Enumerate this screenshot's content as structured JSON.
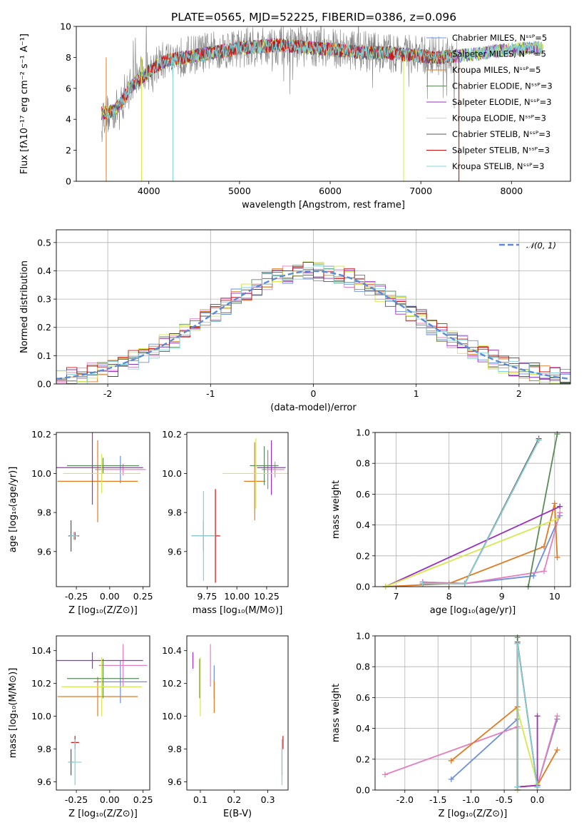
{
  "figure": {
    "title": "PLATE=0565, MJD=52225, FIBERID=0386, z=0.096"
  },
  "series_styles": [
    {
      "name": "Chabrier MILES, N_SSP=5",
      "color": "#6a8fdc"
    },
    {
      "name": "Salpeter MILES, N_SSP=5",
      "color": "#e47fc0"
    },
    {
      "name": "Kroupa MILES, N_SSP=5",
      "color": "#e07b22"
    },
    {
      "name": "Chabrier ELODIE, N_SSP=3",
      "color": "#5a8a5a"
    },
    {
      "name": "Salpeter ELODIE, N_SSP=3",
      "color": "#9b30c0"
    },
    {
      "name": "Kroupa ELODIE, N_SSP=3",
      "color": "#d6e84a"
    },
    {
      "name": "Chabrier STELIB, N_SSP=3",
      "color": "#555555"
    },
    {
      "name": "Salpeter STELIB, N_SSP=3",
      "color": "#cc1111"
    },
    {
      "name": "Kroupa STELIB, N_SSP=3",
      "color": "#7fd3d8"
    }
  ],
  "chart_data": [
    {
      "id": "spectrum",
      "type": "line",
      "xlabel": "wavelength [Angstrom, rest frame]",
      "ylabel": "Flux [f_λ 10^-17 erg cm^-2 s^-1 A^-1]",
      "xlim": [
        3200,
        8650
      ],
      "ylim": [
        0,
        10
      ],
      "xticks": [
        4000,
        5000,
        6000,
        7000,
        8000
      ],
      "yticks": [
        0,
        2,
        4,
        6,
        8,
        10
      ],
      "grid": false,
      "legend": {
        "position": "right",
        "entries": [
          "Chabrier MILES, N_SSP=5",
          "Salpeter MILES, N_SSP=5",
          "Kroupa MILES, N_SSP=5",
          "Chabrier ELODIE, N_SSP=3",
          "Salpeter ELODIE, N_SSP=3",
          "Kroupa ELODIE, N_SSP=3",
          "Chabrier STELIB, N_SSP=3",
          "Salpeter STELIB, N_SSP=3",
          "Kroupa STELIB, N_SSP=3"
        ]
      },
      "data_series": {
        "name": "data",
        "color": "#808080",
        "x": [
          3480,
          3600,
          3700,
          3800,
          3900,
          4000,
          4100,
          4200,
          4300,
          4400,
          4500,
          4600,
          4700,
          4800,
          4900,
          5000,
          5200,
          5400,
          5600,
          5800,
          6000,
          6200,
          6400,
          6600,
          6800,
          7000,
          7200,
          7400
        ],
        "y": [
          4.3,
          4.4,
          5.0,
          6.2,
          6.8,
          7.2,
          7.6,
          7.9,
          8.0,
          8.1,
          8.2,
          8.3,
          8.4,
          8.5,
          8.6,
          8.6,
          8.7,
          8.8,
          8.7,
          8.6,
          8.6,
          8.5,
          8.4,
          8.3,
          8.2,
          8.1,
          8.1,
          8.0
        ]
      },
      "model_continuum": {
        "x": [
          3480,
          3600,
          3700,
          3800,
          3900,
          4000,
          4100,
          4200,
          4300,
          4400,
          4500,
          4600,
          4700,
          4800,
          4900,
          5000,
          5200,
          5400,
          5600,
          5800,
          6000,
          6200,
          6400,
          6600,
          6800,
          7000,
          7200,
          7400,
          7600,
          7800,
          8000,
          8200,
          8350
        ],
        "y": [
          4.4,
          4.5,
          5.1,
          6.1,
          6.6,
          7.1,
          7.5,
          7.8,
          7.9,
          8.0,
          8.1,
          8.2,
          8.3,
          8.4,
          8.5,
          8.6,
          8.7,
          8.8,
          8.7,
          8.6,
          8.5,
          8.4,
          8.3,
          8.3,
          8.2,
          8.1,
          8.0,
          8.1,
          8.2,
          8.4,
          8.5,
          8.6,
          8.6
        ]
      }
    },
    {
      "id": "residuals",
      "type": "histogram",
      "xlabel": "(data-model)/error",
      "ylabel": "Normed distribution",
      "xlim": [
        -2.5,
        2.5
      ],
      "ylim": [
        0,
        0.545
      ],
      "xticks": [
        -2,
        -1,
        0,
        1,
        2
      ],
      "yticks": [
        0.0,
        0.1,
        0.2,
        0.3,
        0.4,
        0.5
      ],
      "grid": true,
      "legend": {
        "position": "top-right",
        "entries": [
          "N(0,1)"
        ]
      },
      "gaussian": {
        "name": "N(0,1)",
        "mean": 0,
        "sigma": 1,
        "color": "#5b8bd6"
      },
      "bin_width": 0.1
    },
    {
      "id": "age_vs_Z",
      "type": "scatter",
      "xlabel": "Z [log10(Z/Z_sun)]",
      "ylabel": "age [log10(age/yr)]",
      "xlim": [
        -0.4,
        0.3
      ],
      "ylim": [
        9.42,
        10.21
      ],
      "xticks": [
        -0.25,
        0.0,
        0.25
      ],
      "yticks": [
        9.6,
        9.8,
        10.0,
        10.2
      ],
      "points": [
        {
          "series": 0,
          "x": 0.08,
          "y": 10.02,
          "xerr": 0.19,
          "yerr": 0.07
        },
        {
          "series": 1,
          "x": 0.1,
          "y": 10.02,
          "xerr": 0.17,
          "yerr": 0.03
        },
        {
          "series": 2,
          "x": -0.09,
          "y": 9.96,
          "xerr": 0.3,
          "yerr": 0.21
        },
        {
          "series": 3,
          "x": -0.05,
          "y": 10.04,
          "xerr": 0.27,
          "yerr": 0.04
        },
        {
          "series": 4,
          "x": -0.13,
          "y": 10.03,
          "xerr": 0.38,
          "yerr": 0.19
        },
        {
          "series": 5,
          "x": -0.06,
          "y": 10.0,
          "xerr": 0.29,
          "yerr": 0.1
        },
        {
          "series": 6,
          "x": -0.29,
          "y": 9.68,
          "xerr": 0.02,
          "yerr": 0.08
        },
        {
          "series": 7,
          "x": -0.26,
          "y": 9.68,
          "xerr": 0.03,
          "yerr": 0.02
        },
        {
          "series": 8,
          "x": -0.27,
          "y": 9.68,
          "xerr": 0.03,
          "yerr": 0.02
        }
      ]
    },
    {
      "id": "age_vs_mass",
      "type": "scatter",
      "xlabel": "mass [log10(M/M_sun)]",
      "ylabel": "",
      "xlim": [
        9.58,
        10.43
      ],
      "ylim": [
        9.42,
        10.21
      ],
      "xticks": [
        9.75,
        10.0,
        10.25
      ],
      "yticks": [
        9.6,
        9.8,
        10.0,
        10.2
      ],
      "points": [
        {
          "series": 0,
          "x": 10.26,
          "y": 10.02,
          "xerr": 0.05,
          "yerr": 0.1
        },
        {
          "series": 1,
          "x": 10.32,
          "y": 10.02,
          "xerr": 0.08,
          "yerr": 0.04
        },
        {
          "series": 2,
          "x": 10.15,
          "y": 9.96,
          "xerr": 0.09,
          "yerr": 0.2
        },
        {
          "series": 3,
          "x": 10.23,
          "y": 10.04,
          "xerr": 0.12,
          "yerr": 0.1
        },
        {
          "series": 4,
          "x": 10.29,
          "y": 10.03,
          "xerr": 0.12,
          "yerr": 0.14
        },
        {
          "series": 5,
          "x": 10.16,
          "y": 10.0,
          "xerr": 0.28,
          "yerr": 0.18
        },
        {
          "series": 6,
          "x": 9.72,
          "y": 9.68,
          "xerr": 0.1,
          "yerr": 0.08
        },
        {
          "series": 7,
          "x": 9.82,
          "y": 9.68,
          "xerr": 0.04,
          "yerr": 0.24
        },
        {
          "series": 8,
          "x": 9.72,
          "y": 9.68,
          "xerr": 0.1,
          "yerr": 0.23
        }
      ]
    },
    {
      "id": "mass_weight_vs_age",
      "type": "line",
      "xlabel": "age [log10(age/yr)]",
      "ylabel": "mass weight",
      "xlim": [
        6.6,
        10.3
      ],
      "ylim": [
        0,
        1
      ],
      "xticks": [
        7,
        8,
        9,
        10
      ],
      "yticks": [
        0.0,
        0.2,
        0.4,
        0.6,
        0.8,
        1.0
      ],
      "grid": true,
      "lines": [
        {
          "series": 0,
          "x": [
            7.5,
            8.3,
            9.6,
            10.1
          ],
          "y": [
            0.03,
            0.02,
            0.07,
            0.46
          ]
        },
        {
          "series": 1,
          "x": [
            7.5,
            8.3,
            9.8,
            10.1
          ],
          "y": [
            0.03,
            0.02,
            0.1,
            0.48
          ]
        },
        {
          "series": 2,
          "x": [
            6.8,
            8.0,
            9.8,
            10.0,
            10.05
          ],
          "y": [
            0.0,
            0.02,
            0.26,
            0.54,
            0.19
          ]
        },
        {
          "series": 3,
          "x": [
            9.5,
            10.05
          ],
          "y": [
            0.0,
            0.99
          ]
        },
        {
          "series": 4,
          "x": [
            6.8,
            10.1
          ],
          "y": [
            0.0,
            0.52
          ]
        },
        {
          "series": 5,
          "x": [
            6.8,
            10.05
          ],
          "y": [
            0.0,
            0.44
          ]
        },
        {
          "series": 6,
          "x": [
            7.5,
            8.3,
            9.7
          ],
          "y": [
            0.02,
            0.02,
            0.96
          ]
        },
        {
          "series": 7,
          "x": [
            7.5,
            8.3,
            9.7
          ],
          "y": [
            0.02,
            0.02,
            0.95
          ]
        },
        {
          "series": 8,
          "x": [
            7.5,
            8.3,
            9.7
          ],
          "y": [
            0.02,
            0.02,
            0.95
          ]
        }
      ]
    },
    {
      "id": "mass_vs_Z",
      "type": "scatter",
      "xlabel": "Z [log10(Z/Z_sun)]",
      "ylabel": "mass [log10(M/M_sun)]",
      "xlim": [
        -0.4,
        0.3
      ],
      "ylim": [
        9.55,
        10.49
      ],
      "xticks": [
        -0.25,
        0.0,
        0.25
      ],
      "yticks": [
        9.6,
        9.8,
        10.0,
        10.2,
        10.4
      ],
      "points": [
        {
          "series": 0,
          "x": 0.08,
          "y": 10.21,
          "xerr": 0.2,
          "yerr": 0.13
        },
        {
          "series": 1,
          "x": 0.1,
          "y": 10.31,
          "xerr": 0.18,
          "yerr": 0.13
        },
        {
          "series": 2,
          "x": -0.09,
          "y": 10.12,
          "xerr": 0.3,
          "yerr": 0.12
        },
        {
          "series": 3,
          "x": -0.05,
          "y": 10.23,
          "xerr": 0.27,
          "yerr": 0.12
        },
        {
          "series": 4,
          "x": -0.13,
          "y": 10.34,
          "xerr": 0.38,
          "yerr": 0.05
        },
        {
          "series": 5,
          "x": -0.06,
          "y": 10.18,
          "xerr": 0.3,
          "yerr": 0.18
        },
        {
          "series": 6,
          "x": -0.29,
          "y": 9.72,
          "xerr": 0.02,
          "yerr": 0.08
        },
        {
          "series": 7,
          "x": -0.26,
          "y": 9.84,
          "xerr": 0.03,
          "yerr": 0.04
        },
        {
          "series": 8,
          "x": -0.26,
          "y": 9.72,
          "xerr": 0.05,
          "yerr": 0.14
        }
      ]
    },
    {
      "id": "mass_vs_EBV",
      "type": "scatter",
      "xlabel": "E(B-V)",
      "ylabel": "",
      "xlim": [
        0.06,
        0.36
      ],
      "ylim": [
        9.55,
        10.49
      ],
      "xticks": [
        0.1,
        0.2,
        0.3
      ],
      "yticks": [
        9.6,
        9.8,
        10.0,
        10.2,
        10.4
      ],
      "points": [
        {
          "series": 0,
          "x": 0.141,
          "y": 10.21,
          "xerr": 0.001,
          "yerr": 0.1
        },
        {
          "series": 1,
          "x": 0.13,
          "y": 10.31,
          "xerr": 0.001,
          "yerr": 0.13
        },
        {
          "series": 2,
          "x": 0.141,
          "y": 10.12,
          "xerr": 0.001,
          "yerr": 0.1
        },
        {
          "series": 3,
          "x": 0.098,
          "y": 10.23,
          "xerr": 0.001,
          "yerr": 0.12
        },
        {
          "series": 4,
          "x": 0.078,
          "y": 10.34,
          "xerr": 0.001,
          "yerr": 0.05
        },
        {
          "series": 5,
          "x": 0.1,
          "y": 10.18,
          "xerr": 0.001,
          "yerr": 0.18
        },
        {
          "series": 6,
          "x": 0.342,
          "y": 9.72,
          "xerr": 0.001,
          "yerr": 0.08
        },
        {
          "series": 7,
          "x": 0.345,
          "y": 9.84,
          "xerr": 0.001,
          "yerr": 0.04
        },
        {
          "series": 8,
          "x": 0.342,
          "y": 9.72,
          "xerr": 0.001,
          "yerr": 0.14
        }
      ]
    },
    {
      "id": "mass_weight_vs_Z",
      "type": "line",
      "xlabel": "Z [log10(Z/Z_sun)]",
      "ylabel": "mass weight",
      "xlim": [
        -2.45,
        0.5
      ],
      "ylim": [
        0,
        1
      ],
      "xticks": [
        -2.0,
        -1.5,
        -1.0,
        -0.5,
        0.0
      ],
      "yticks": [
        0.0,
        0.2,
        0.4,
        0.6,
        0.8,
        1.0
      ],
      "grid": true,
      "lines": [
        {
          "series": 0,
          "x": [
            -1.3,
            -0.3,
            -0.3,
            0.0,
            0.3
          ],
          "y": [
            0.07,
            0.46,
            0.02,
            0.03,
            0.46
          ]
        },
        {
          "series": 1,
          "x": [
            -2.3,
            -0.3,
            -0.3,
            0.0,
            0.3
          ],
          "y": [
            0.1,
            0.41,
            0.02,
            0.03,
            0.48
          ]
        },
        {
          "series": 2,
          "x": [
            -1.3,
            -0.3,
            -0.3,
            0.0,
            0.3
          ],
          "y": [
            0.19,
            0.54,
            0.02,
            0.03,
            0.26
          ]
        },
        {
          "series": 3,
          "x": [
            -0.3,
            -0.3
          ],
          "y": [
            0.0,
            0.99
          ]
        },
        {
          "series": 4,
          "x": [
            -0.3,
            -0.3,
            0.0,
            0.0
          ],
          "y": [
            0.0,
            0.02,
            0.03,
            0.48
          ]
        },
        {
          "series": 5,
          "x": [
            -0.3,
            -0.3,
            0.0
          ],
          "y": [
            0.0,
            0.52,
            0.04
          ]
        },
        {
          "series": 6,
          "x": [
            -0.3,
            -0.3,
            0.0
          ],
          "y": [
            0.02,
            0.96,
            0.02
          ]
        },
        {
          "series": 7,
          "x": [
            -0.3,
            -0.3,
            0.0
          ],
          "y": [
            0.02,
            0.95,
            0.02
          ]
        },
        {
          "series": 8,
          "x": [
            -0.3,
            -0.3,
            0.0
          ],
          "y": [
            0.02,
            0.95,
            0.02
          ]
        }
      ]
    }
  ]
}
